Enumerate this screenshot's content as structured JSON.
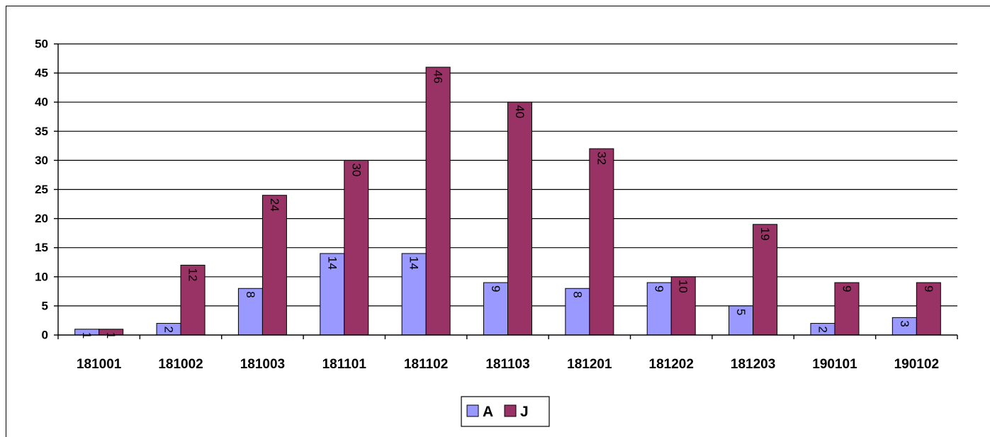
{
  "chart_data": {
    "type": "bar",
    "categories": [
      "181001",
      "181002",
      "181003",
      "181101",
      "181102",
      "181103",
      "181201",
      "181202",
      "181203",
      "190101",
      "190102"
    ],
    "series": [
      {
        "name": "A",
        "values": [
          1,
          2,
          8,
          14,
          14,
          9,
          8,
          9,
          5,
          2,
          3
        ],
        "color": "#9999FF"
      },
      {
        "name": "J",
        "values": [
          1,
          12,
          24,
          30,
          46,
          40,
          32,
          10,
          19,
          9,
          9
        ],
        "color": "#993366"
      }
    ],
    "ylim": [
      0,
      50
    ],
    "yticks": [
      0,
      5,
      10,
      15,
      20,
      25,
      30,
      35,
      40,
      45,
      50
    ],
    "grid": true,
    "legend_position": "bottom",
    "data_labels": "rotated-inside-top"
  }
}
